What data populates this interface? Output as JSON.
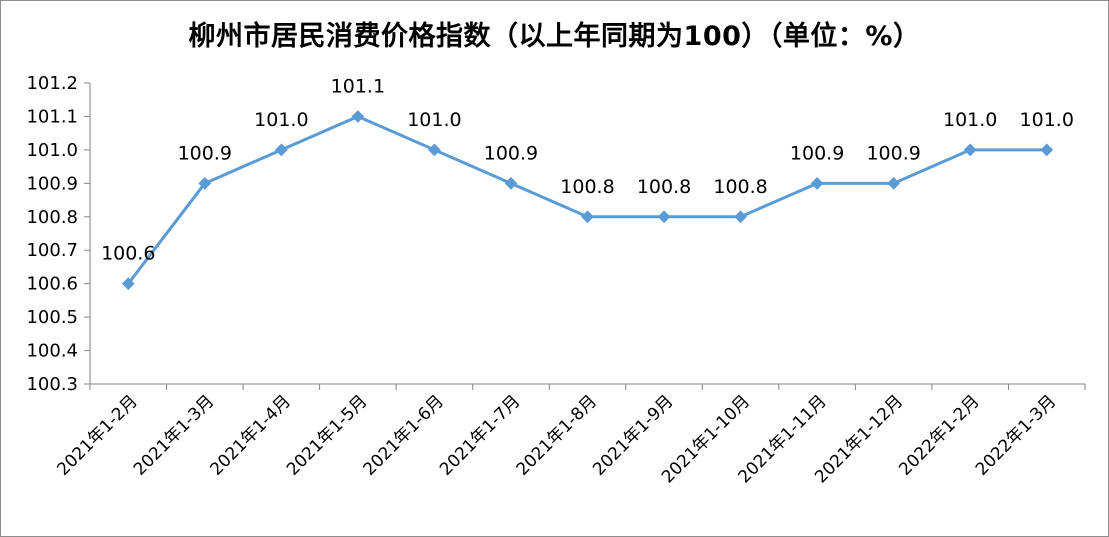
{
  "chart_data": {
    "type": "line",
    "title": "柳州市居民消费价格指数（以上年同期为100）（单位：%）",
    "xlabel": "",
    "ylabel": "",
    "categories": [
      "2021年1-2月",
      "2021年1-3月",
      "2021年1-4月",
      "2021年1-5月",
      "2021年1-6月",
      "2021年1-7月",
      "2021年1-8月",
      "2021年1-9月",
      "2021年1-10月",
      "2021年1-11月",
      "2021年1-12月",
      "2022年1-2月",
      "2022年1-3月"
    ],
    "series": [
      {
        "values": [
          100.6,
          100.9,
          101.0,
          101.1,
          101.0,
          100.9,
          100.8,
          100.8,
          100.8,
          100.9,
          100.9,
          101.0,
          101.0
        ],
        "labels": [
          "100.6",
          "100.9",
          "101.0",
          "101.1",
          "101.0",
          "100.9",
          "100.8",
          "100.8",
          "100.8",
          "100.9",
          "100.9",
          "101.0",
          "101.0"
        ],
        "color": "#5b9bd5"
      }
    ],
    "ylim": [
      100.3,
      101.2
    ],
    "yticks": [
      "100.3",
      "100.4",
      "100.5",
      "100.6",
      "100.7",
      "100.8",
      "100.9",
      "101.0",
      "101.1",
      "101.2"
    ],
    "grid": false,
    "legend": "none"
  }
}
